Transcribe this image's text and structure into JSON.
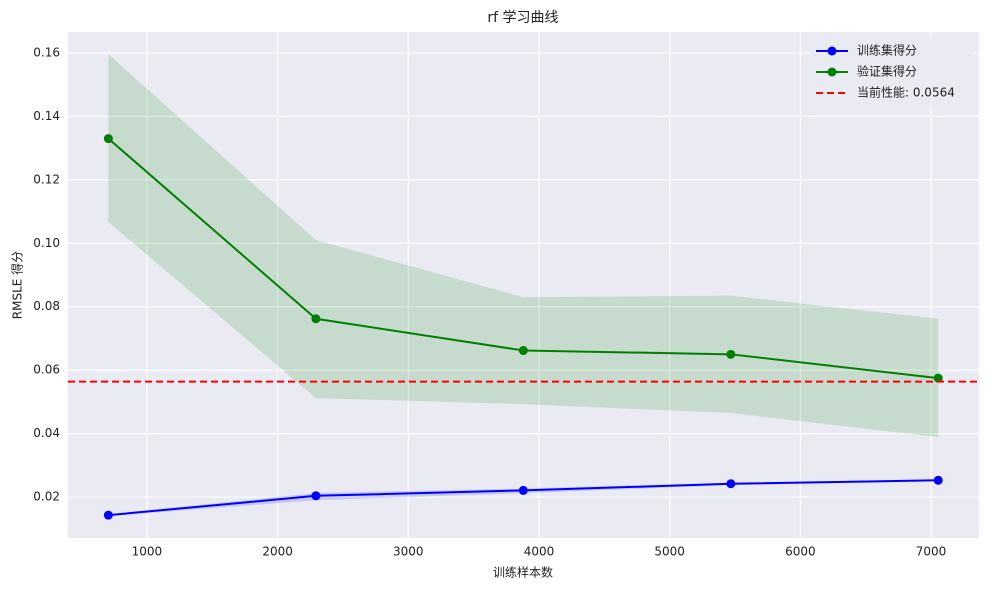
{
  "chart_data": {
    "type": "line",
    "title": "rf 学习曲线",
    "x_label": "训练样本数",
    "y_label": "RMSLE 得分",
    "x": [
      705,
      2293,
      3880,
      5468,
      7055
    ],
    "series": [
      {
        "name": "训练集得分",
        "color": "#0000ff",
        "values": [
          0.0143,
          0.0204,
          0.0221,
          0.0242,
          0.0253
        ],
        "upper": [
          0.0146,
          0.0213,
          0.0227,
          0.0245,
          0.0256
        ],
        "lower": [
          0.014,
          0.019,
          0.0212,
          0.0238,
          0.025
        ]
      },
      {
        "name": "验证集得分",
        "color": "#008000",
        "values": [
          0.133,
          0.0762,
          0.0662,
          0.065,
          0.0575
        ],
        "upper": [
          0.1596,
          0.101,
          0.083,
          0.0835,
          0.0762
        ],
        "lower": [
          0.1067,
          0.0512,
          0.0493,
          0.0465,
          0.0389
        ]
      }
    ],
    "hline": {
      "value": 0.0564,
      "label": "当前性能: 0.0564",
      "color": "#ff0000"
    },
    "xlim": [
      396,
      7367
    ],
    "ylim": [
      0.0071,
      0.1666
    ],
    "xticks": [
      1000,
      2000,
      3000,
      4000,
      5000,
      6000,
      7000
    ],
    "yticks": [
      {
        "value": 0.02,
        "label": "0.02"
      },
      {
        "value": 0.04,
        "label": "0.04"
      },
      {
        "value": 0.06,
        "label": "0.06"
      },
      {
        "value": 0.08,
        "label": "0.08"
      },
      {
        "value": 0.1,
        "label": "0.10"
      },
      {
        "value": 0.12,
        "label": "0.12"
      },
      {
        "value": 0.14,
        "label": "0.14"
      },
      {
        "value": 0.16,
        "label": "0.16"
      }
    ],
    "grid": true,
    "legend": "upper right"
  }
}
